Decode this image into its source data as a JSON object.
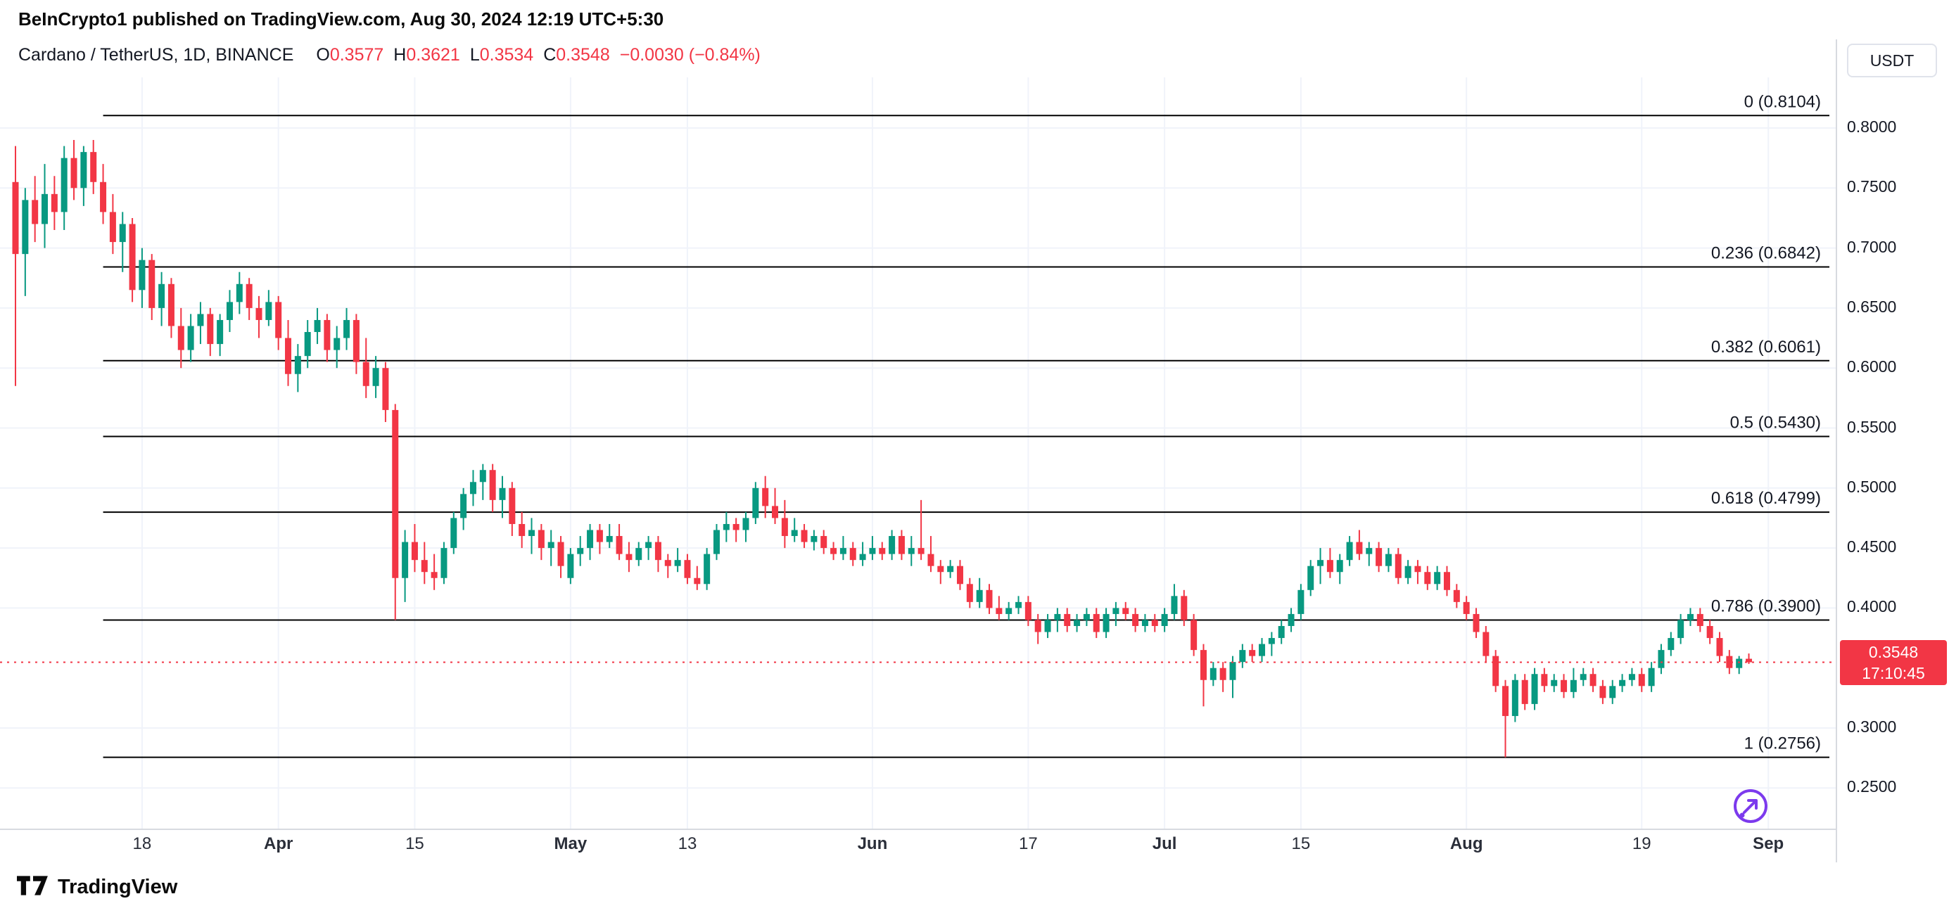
{
  "page": {
    "attribution": "BeInCrypto1 published on TradingView.com, Aug 30, 2024 12:19 UTC+5:30",
    "footer_brand": "TradingView"
  },
  "symbol_bar": {
    "title": "Cardano / TetherUS, 1D, BINANCE",
    "ohlc": [
      {
        "label": "O",
        "value": "0.3577"
      },
      {
        "label": "H",
        "value": "0.3621"
      },
      {
        "label": "L",
        "value": "0.3534"
      },
      {
        "label": "C",
        "value": "0.3548"
      }
    ],
    "change": "−0.0030 (−0.84%)"
  },
  "price_axis": {
    "currency": "USDT",
    "current_price": "0.3548",
    "countdown": "17:10:45"
  },
  "chart_data": {
    "type": "candlestick",
    "title": "Cardano / TetherUS, 1D, BINANCE",
    "timeframe": "1D",
    "start_date": "2024-03-05",
    "end_date": "2024-08-30",
    "ylim": [
      0.215,
      0.842
    ],
    "grid": true,
    "current_price": 0.3548,
    "colors": {
      "up": "#089981",
      "down": "#f23645",
      "fib": "#000000",
      "current_price_line": "#f23645",
      "price_badge": "#f23645"
    },
    "y_ticks": [
      {
        "label": "0.8000",
        "value": 0.8
      },
      {
        "label": "0.7500",
        "value": 0.75
      },
      {
        "label": "0.7000",
        "value": 0.7
      },
      {
        "label": "0.6500",
        "value": 0.65
      },
      {
        "label": "0.6000",
        "value": 0.6
      },
      {
        "label": "0.5500",
        "value": 0.55
      },
      {
        "label": "0.5000",
        "value": 0.5
      },
      {
        "label": "0.4500",
        "value": 0.45
      },
      {
        "label": "0.4000",
        "value": 0.4
      },
      {
        "label": "0.3000",
        "value": 0.3
      },
      {
        "label": "0.2500",
        "value": 0.25
      }
    ],
    "x_ticks": [
      {
        "label": "18",
        "index": 13
      },
      {
        "label": "Apr",
        "index": 27
      },
      {
        "label": "15",
        "index": 41
      },
      {
        "label": "May",
        "index": 57
      },
      {
        "label": "13",
        "index": 69
      },
      {
        "label": "Jun",
        "index": 88
      },
      {
        "label": "17",
        "index": 104
      },
      {
        "label": "Jul",
        "index": 118
      },
      {
        "label": "15",
        "index": 132
      },
      {
        "label": "Aug",
        "index": 149
      },
      {
        "label": "19",
        "index": 167
      },
      {
        "label": "Sep",
        "index": 180
      }
    ],
    "fib_anchor_index": 9,
    "fib_levels": [
      {
        "label": "0 (0.8104)",
        "value": 0.8104
      },
      {
        "label": "0.236 (0.6842)",
        "value": 0.6842
      },
      {
        "label": "0.382 (0.6061)",
        "value": 0.6061
      },
      {
        "label": "0.5 (0.5430)",
        "value": 0.543
      },
      {
        "label": "0.618 (0.4799)",
        "value": 0.4799
      },
      {
        "label": "0.786 (0.3900)",
        "value": 0.39
      },
      {
        "label": "1 (0.2756)",
        "value": 0.2756
      }
    ],
    "candles": [
      [
        0.755,
        0.785,
        0.585,
        0.695
      ],
      [
        0.695,
        0.75,
        0.66,
        0.74
      ],
      [
        0.74,
        0.76,
        0.705,
        0.72
      ],
      [
        0.72,
        0.77,
        0.7,
        0.745
      ],
      [
        0.745,
        0.76,
        0.715,
        0.73
      ],
      [
        0.73,
        0.785,
        0.715,
        0.775
      ],
      [
        0.775,
        0.79,
        0.74,
        0.75
      ],
      [
        0.75,
        0.785,
        0.735,
        0.78
      ],
      [
        0.78,
        0.79,
        0.745,
        0.755
      ],
      [
        0.755,
        0.77,
        0.72,
        0.73
      ],
      [
        0.73,
        0.745,
        0.695,
        0.705
      ],
      [
        0.705,
        0.73,
        0.68,
        0.72
      ],
      [
        0.72,
        0.725,
        0.655,
        0.665
      ],
      [
        0.665,
        0.7,
        0.65,
        0.69
      ],
      [
        0.69,
        0.695,
        0.64,
        0.65
      ],
      [
        0.65,
        0.68,
        0.635,
        0.67
      ],
      [
        0.67,
        0.675,
        0.625,
        0.635
      ],
      [
        0.635,
        0.65,
        0.6,
        0.615
      ],
      [
        0.615,
        0.645,
        0.605,
        0.635
      ],
      [
        0.635,
        0.655,
        0.62,
        0.645
      ],
      [
        0.645,
        0.65,
        0.61,
        0.62
      ],
      [
        0.62,
        0.645,
        0.61,
        0.64
      ],
      [
        0.64,
        0.665,
        0.63,
        0.655
      ],
      [
        0.655,
        0.68,
        0.645,
        0.67
      ],
      [
        0.67,
        0.675,
        0.64,
        0.65
      ],
      [
        0.65,
        0.66,
        0.625,
        0.64
      ],
      [
        0.64,
        0.665,
        0.635,
        0.655
      ],
      [
        0.655,
        0.66,
        0.615,
        0.625
      ],
      [
        0.625,
        0.64,
        0.585,
        0.595
      ],
      [
        0.595,
        0.62,
        0.58,
        0.61
      ],
      [
        0.61,
        0.64,
        0.6,
        0.63
      ],
      [
        0.63,
        0.65,
        0.62,
        0.64
      ],
      [
        0.64,
        0.645,
        0.605,
        0.615
      ],
      [
        0.615,
        0.635,
        0.6,
        0.625
      ],
      [
        0.625,
        0.65,
        0.615,
        0.64
      ],
      [
        0.64,
        0.645,
        0.595,
        0.605
      ],
      [
        0.605,
        0.625,
        0.575,
        0.585
      ],
      [
        0.585,
        0.61,
        0.575,
        0.6
      ],
      [
        0.6,
        0.605,
        0.555,
        0.565
      ],
      [
        0.565,
        0.57,
        0.39,
        0.425
      ],
      [
        0.425,
        0.465,
        0.405,
        0.455
      ],
      [
        0.455,
        0.47,
        0.43,
        0.44
      ],
      [
        0.44,
        0.455,
        0.42,
        0.43
      ],
      [
        0.43,
        0.445,
        0.415,
        0.425
      ],
      [
        0.425,
        0.455,
        0.42,
        0.45
      ],
      [
        0.45,
        0.48,
        0.445,
        0.475
      ],
      [
        0.475,
        0.5,
        0.465,
        0.495
      ],
      [
        0.495,
        0.515,
        0.485,
        0.505
      ],
      [
        0.505,
        0.52,
        0.49,
        0.515
      ],
      [
        0.515,
        0.52,
        0.48,
        0.49
      ],
      [
        0.49,
        0.51,
        0.475,
        0.5
      ],
      [
        0.5,
        0.505,
        0.46,
        0.47
      ],
      [
        0.47,
        0.48,
        0.45,
        0.46
      ],
      [
        0.46,
        0.475,
        0.445,
        0.465
      ],
      [
        0.465,
        0.47,
        0.44,
        0.45
      ],
      [
        0.45,
        0.465,
        0.435,
        0.455
      ],
      [
        0.455,
        0.46,
        0.425,
        0.435
      ],
      [
        0.425,
        0.45,
        0.42,
        0.445
      ],
      [
        0.445,
        0.46,
        0.435,
        0.45
      ],
      [
        0.45,
        0.47,
        0.44,
        0.465
      ],
      [
        0.465,
        0.47,
        0.445,
        0.455
      ],
      [
        0.455,
        0.47,
        0.45,
        0.46
      ],
      [
        0.46,
        0.47,
        0.44,
        0.445
      ],
      [
        0.445,
        0.455,
        0.43,
        0.44
      ],
      [
        0.44,
        0.455,
        0.435,
        0.45
      ],
      [
        0.45,
        0.46,
        0.44,
        0.455
      ],
      [
        0.455,
        0.46,
        0.43,
        0.44
      ],
      [
        0.44,
        0.445,
        0.425,
        0.435
      ],
      [
        0.435,
        0.45,
        0.43,
        0.44
      ],
      [
        0.44,
        0.445,
        0.42,
        0.425
      ],
      [
        0.425,
        0.435,
        0.415,
        0.42
      ],
      [
        0.42,
        0.45,
        0.415,
        0.445
      ],
      [
        0.445,
        0.47,
        0.44,
        0.465
      ],
      [
        0.465,
        0.48,
        0.455,
        0.47
      ],
      [
        0.47,
        0.475,
        0.455,
        0.465
      ],
      [
        0.465,
        0.48,
        0.455,
        0.475
      ],
      [
        0.475,
        0.505,
        0.47,
        0.5
      ],
      [
        0.5,
        0.51,
        0.475,
        0.485
      ],
      [
        0.485,
        0.5,
        0.47,
        0.475
      ],
      [
        0.475,
        0.49,
        0.45,
        0.46
      ],
      [
        0.46,
        0.475,
        0.455,
        0.465
      ],
      [
        0.465,
        0.47,
        0.45,
        0.455
      ],
      [
        0.455,
        0.465,
        0.448,
        0.46
      ],
      [
        0.46,
        0.465,
        0.445,
        0.45
      ],
      [
        0.45,
        0.455,
        0.44,
        0.445
      ],
      [
        0.445,
        0.46,
        0.44,
        0.45
      ],
      [
        0.45,
        0.455,
        0.435,
        0.44
      ],
      [
        0.44,
        0.455,
        0.435,
        0.445
      ],
      [
        0.445,
        0.46,
        0.44,
        0.45
      ],
      [
        0.45,
        0.455,
        0.44,
        0.445
      ],
      [
        0.445,
        0.465,
        0.44,
        0.46
      ],
      [
        0.46,
        0.465,
        0.44,
        0.445
      ],
      [
        0.445,
        0.46,
        0.435,
        0.45
      ],
      [
        0.45,
        0.49,
        0.44,
        0.445
      ],
      [
        0.445,
        0.46,
        0.43,
        0.435
      ],
      [
        0.435,
        0.44,
        0.42,
        0.43
      ],
      [
        0.43,
        0.44,
        0.425,
        0.435
      ],
      [
        0.435,
        0.44,
        0.415,
        0.42
      ],
      [
        0.42,
        0.425,
        0.4,
        0.405
      ],
      [
        0.405,
        0.425,
        0.4,
        0.415
      ],
      [
        0.415,
        0.42,
        0.395,
        0.4
      ],
      [
        0.4,
        0.41,
        0.39,
        0.395
      ],
      [
        0.395,
        0.405,
        0.39,
        0.4
      ],
      [
        0.4,
        0.41,
        0.395,
        0.405
      ],
      [
        0.405,
        0.41,
        0.385,
        0.39
      ],
      [
        0.39,
        0.395,
        0.37,
        0.38
      ],
      [
        0.38,
        0.395,
        0.375,
        0.39
      ],
      [
        0.39,
        0.4,
        0.38,
        0.395
      ],
      [
        0.395,
        0.4,
        0.38,
        0.385
      ],
      [
        0.385,
        0.395,
        0.38,
        0.39
      ],
      [
        0.39,
        0.4,
        0.385,
        0.395
      ],
      [
        0.395,
        0.4,
        0.375,
        0.38
      ],
      [
        0.38,
        0.4,
        0.375,
        0.395
      ],
      [
        0.395,
        0.405,
        0.385,
        0.4
      ],
      [
        0.4,
        0.405,
        0.39,
        0.395
      ],
      [
        0.395,
        0.4,
        0.38,
        0.385
      ],
      [
        0.385,
        0.395,
        0.38,
        0.39
      ],
      [
        0.39,
        0.395,
        0.38,
        0.385
      ],
      [
        0.385,
        0.4,
        0.38,
        0.395
      ],
      [
        0.395,
        0.42,
        0.39,
        0.41
      ],
      [
        0.41,
        0.415,
        0.385,
        0.39
      ],
      [
        0.39,
        0.395,
        0.36,
        0.365
      ],
      [
        0.365,
        0.37,
        0.318,
        0.34
      ],
      [
        0.34,
        0.355,
        0.335,
        0.35
      ],
      [
        0.35,
        0.355,
        0.33,
        0.34
      ],
      [
        0.34,
        0.36,
        0.325,
        0.355
      ],
      [
        0.355,
        0.37,
        0.35,
        0.365
      ],
      [
        0.365,
        0.37,
        0.355,
        0.36
      ],
      [
        0.36,
        0.375,
        0.355,
        0.37
      ],
      [
        0.37,
        0.38,
        0.36,
        0.375
      ],
      [
        0.375,
        0.39,
        0.37,
        0.385
      ],
      [
        0.385,
        0.4,
        0.38,
        0.395
      ],
      [
        0.395,
        0.42,
        0.39,
        0.415
      ],
      [
        0.415,
        0.44,
        0.41,
        0.435
      ],
      [
        0.435,
        0.45,
        0.42,
        0.44
      ],
      [
        0.44,
        0.45,
        0.425,
        0.43
      ],
      [
        0.43,
        0.445,
        0.42,
        0.44
      ],
      [
        0.44,
        0.46,
        0.435,
        0.455
      ],
      [
        0.455,
        0.465,
        0.44,
        0.445
      ],
      [
        0.445,
        0.455,
        0.435,
        0.45
      ],
      [
        0.45,
        0.455,
        0.43,
        0.435
      ],
      [
        0.435,
        0.45,
        0.43,
        0.445
      ],
      [
        0.445,
        0.45,
        0.42,
        0.425
      ],
      [
        0.425,
        0.44,
        0.42,
        0.435
      ],
      [
        0.435,
        0.44,
        0.42,
        0.43
      ],
      [
        0.43,
        0.435,
        0.415,
        0.42
      ],
      [
        0.42,
        0.435,
        0.415,
        0.43
      ],
      [
        0.43,
        0.435,
        0.41,
        0.415
      ],
      [
        0.415,
        0.42,
        0.4,
        0.405
      ],
      [
        0.405,
        0.41,
        0.39,
        0.395
      ],
      [
        0.395,
        0.4,
        0.375,
        0.38
      ],
      [
        0.38,
        0.385,
        0.355,
        0.36
      ],
      [
        0.36,
        0.365,
        0.33,
        0.335
      ],
      [
        0.335,
        0.34,
        0.2756,
        0.31
      ],
      [
        0.31,
        0.345,
        0.305,
        0.34
      ],
      [
        0.34,
        0.345,
        0.315,
        0.32
      ],
      [
        0.32,
        0.35,
        0.315,
        0.345
      ],
      [
        0.345,
        0.35,
        0.33,
        0.335
      ],
      [
        0.335,
        0.345,
        0.33,
        0.34
      ],
      [
        0.34,
        0.345,
        0.325,
        0.33
      ],
      [
        0.33,
        0.35,
        0.325,
        0.34
      ],
      [
        0.34,
        0.35,
        0.335,
        0.345
      ],
      [
        0.345,
        0.35,
        0.33,
        0.335
      ],
      [
        0.335,
        0.34,
        0.32,
        0.325
      ],
      [
        0.325,
        0.34,
        0.32,
        0.335
      ],
      [
        0.335,
        0.345,
        0.33,
        0.34
      ],
      [
        0.34,
        0.35,
        0.335,
        0.345
      ],
      [
        0.345,
        0.35,
        0.33,
        0.335
      ],
      [
        0.335,
        0.355,
        0.33,
        0.35
      ],
      [
        0.35,
        0.37,
        0.345,
        0.365
      ],
      [
        0.365,
        0.38,
        0.36,
        0.375
      ],
      [
        0.375,
        0.395,
        0.37,
        0.39
      ],
      [
        0.39,
        0.4,
        0.385,
        0.395
      ],
      [
        0.395,
        0.4,
        0.38,
        0.385
      ],
      [
        0.385,
        0.39,
        0.37,
        0.375
      ],
      [
        0.375,
        0.38,
        0.355,
        0.36
      ],
      [
        0.36,
        0.365,
        0.345,
        0.35
      ],
      [
        0.35,
        0.36,
        0.345,
        0.3577
      ],
      [
        0.3577,
        0.3621,
        0.3534,
        0.3548
      ]
    ]
  }
}
